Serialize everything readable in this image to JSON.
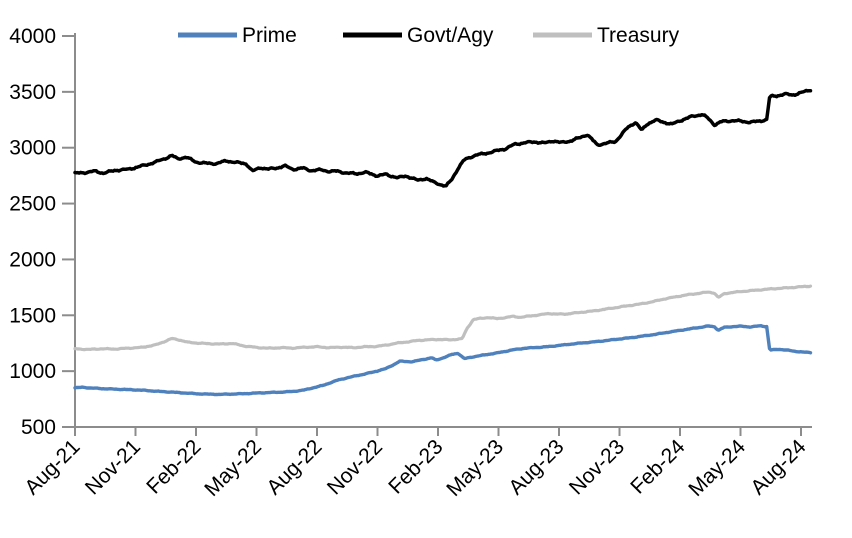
{
  "chart_data": {
    "type": "line",
    "title": "",
    "x_unit": "months since Aug-2021",
    "x_axis": {
      "tick_labels": [
        "Aug-21",
        "Nov-21",
        "Feb-22",
        "May-22",
        "Aug-22",
        "Nov-22",
        "Feb-23",
        "May-23",
        "Aug-23",
        "Nov-23",
        "Feb-24",
        "May-24",
        "Aug-24"
      ],
      "tick_positions_months": [
        0,
        3,
        6,
        9,
        12,
        15,
        18,
        21,
        24,
        27,
        30,
        33,
        36
      ],
      "range_months": [
        0,
        36.5
      ]
    },
    "y_axis": {
      "ticks": [
        500,
        1000,
        1500,
        2000,
        2500,
        3000,
        3500,
        4000
      ],
      "range": [
        500,
        4000
      ]
    },
    "grid": false,
    "legend": {
      "position": "top",
      "entries": [
        "Prime",
        "Govt/Agy",
        "Treasury"
      ]
    },
    "colors": {
      "axis": "#8c8c8c",
      "text": "#000000",
      "background": "#ffffff"
    },
    "series": [
      {
        "name": "Prime",
        "color": "#4f81bd",
        "line_width": 3.4,
        "wiggle": 3.5,
        "points": [
          [
            0,
            850
          ],
          [
            0.4,
            856
          ],
          [
            0.8,
            848
          ],
          [
            1.2,
            845
          ],
          [
            1.8,
            840
          ],
          [
            2.4,
            836
          ],
          [
            3,
            832
          ],
          [
            3.6,
            826
          ],
          [
            4.2,
            818
          ],
          [
            4.8,
            812
          ],
          [
            5.4,
            805
          ],
          [
            6,
            798
          ],
          [
            6.6,
            794
          ],
          [
            7.2,
            792
          ],
          [
            7.8,
            795
          ],
          [
            8.4,
            798
          ],
          [
            9,
            804
          ],
          [
            9.6,
            808
          ],
          [
            10.2,
            812
          ],
          [
            10.8,
            818
          ],
          [
            11.4,
            832
          ],
          [
            11.9,
            855
          ],
          [
            12.3,
            872
          ],
          [
            13,
            918
          ],
          [
            13.6,
            945
          ],
          [
            14.2,
            968
          ],
          [
            14.8,
            992
          ],
          [
            15.4,
            1022
          ],
          [
            15.8,
            1058
          ],
          [
            16.1,
            1088
          ],
          [
            16.7,
            1084
          ],
          [
            17.2,
            1102
          ],
          [
            17.7,
            1120
          ],
          [
            17.9,
            1098
          ],
          [
            18.3,
            1122
          ],
          [
            18.7,
            1150
          ],
          [
            19,
            1160
          ],
          [
            19.3,
            1112
          ],
          [
            19.8,
            1130
          ],
          [
            20.3,
            1145
          ],
          [
            21,
            1165
          ],
          [
            21.7,
            1190
          ],
          [
            22.3,
            1205
          ],
          [
            22.9,
            1212
          ],
          [
            23.4,
            1218
          ],
          [
            24,
            1230
          ],
          [
            24.6,
            1242
          ],
          [
            25.2,
            1253
          ],
          [
            25.8,
            1263
          ],
          [
            26.4,
            1275
          ],
          [
            27,
            1288
          ],
          [
            27.6,
            1300
          ],
          [
            28.2,
            1315
          ],
          [
            28.8,
            1330
          ],
          [
            29.4,
            1348
          ],
          [
            29.9,
            1362
          ],
          [
            30.4,
            1376
          ],
          [
            31,
            1392
          ],
          [
            31.4,
            1404
          ],
          [
            31.7,
            1398
          ],
          [
            31.9,
            1366
          ],
          [
            32.2,
            1392
          ],
          [
            32.6,
            1398
          ],
          [
            33,
            1402
          ],
          [
            33.5,
            1396
          ],
          [
            34,
            1406
          ],
          [
            34.3,
            1398
          ],
          [
            34.45,
            1188
          ],
          [
            34.9,
            1196
          ],
          [
            35.3,
            1188
          ],
          [
            35.7,
            1178
          ],
          [
            36.1,
            1170
          ],
          [
            36.5,
            1166
          ]
        ]
      },
      {
        "name": "Govt/Agy",
        "color": "#000000",
        "line_width": 3.5,
        "wiggle": 10,
        "points": [
          [
            0,
            2770
          ],
          [
            0.6,
            2780
          ],
          [
            1,
            2790
          ],
          [
            1.4,
            2772
          ],
          [
            2,
            2798
          ],
          [
            2.6,
            2806
          ],
          [
            3,
            2822
          ],
          [
            3.6,
            2850
          ],
          [
            4,
            2872
          ],
          [
            4.5,
            2906
          ],
          [
            4.8,
            2930
          ],
          [
            5.1,
            2900
          ],
          [
            5.5,
            2916
          ],
          [
            6,
            2872
          ],
          [
            6.5,
            2860
          ],
          [
            7,
            2858
          ],
          [
            7.5,
            2882
          ],
          [
            8,
            2868
          ],
          [
            8.5,
            2856
          ],
          [
            8.8,
            2790
          ],
          [
            9.2,
            2822
          ],
          [
            9.6,
            2808
          ],
          [
            10,
            2818
          ],
          [
            10.4,
            2838
          ],
          [
            10.8,
            2806
          ],
          [
            11.3,
            2818
          ],
          [
            11.7,
            2795
          ],
          [
            12.2,
            2802
          ],
          [
            12.6,
            2788
          ],
          [
            13,
            2790
          ],
          [
            13.5,
            2772
          ],
          [
            14,
            2768
          ],
          [
            14.4,
            2780
          ],
          [
            15,
            2748
          ],
          [
            15.4,
            2762
          ],
          [
            16,
            2730
          ],
          [
            16.4,
            2748
          ],
          [
            17,
            2708
          ],
          [
            17.4,
            2726
          ],
          [
            17.8,
            2690
          ],
          [
            18.1,
            2672
          ],
          [
            18.4,
            2655
          ],
          [
            18.7,
            2720
          ],
          [
            19,
            2818
          ],
          [
            19.3,
            2890
          ],
          [
            19.6,
            2915
          ],
          [
            19.9,
            2935
          ],
          [
            20.4,
            2950
          ],
          [
            20.8,
            2968
          ],
          [
            21.3,
            2988
          ],
          [
            21.8,
            3030
          ],
          [
            22.3,
            3045
          ],
          [
            22.8,
            3052
          ],
          [
            23.3,
            3042
          ],
          [
            23.7,
            3062
          ],
          [
            24.1,
            3045
          ],
          [
            24.6,
            3062
          ],
          [
            25,
            3088
          ],
          [
            25.4,
            3118
          ],
          [
            25.9,
            3025
          ],
          [
            26.4,
            3042
          ],
          [
            26.8,
            3055
          ],
          [
            27.4,
            3180
          ],
          [
            27.8,
            3228
          ],
          [
            28.1,
            3155
          ],
          [
            28.4,
            3215
          ],
          [
            28.8,
            3248
          ],
          [
            29.2,
            3228
          ],
          [
            29.6,
            3210
          ],
          [
            30,
            3242
          ],
          [
            30.6,
            3280
          ],
          [
            31.1,
            3298
          ],
          [
            31.4,
            3262
          ],
          [
            31.7,
            3205
          ],
          [
            32.1,
            3235
          ],
          [
            32.6,
            3242
          ],
          [
            33,
            3238
          ],
          [
            33.5,
            3228
          ],
          [
            34,
            3240
          ],
          [
            34.3,
            3252
          ],
          [
            34.45,
            3458
          ],
          [
            34.8,
            3465
          ],
          [
            35.2,
            3480
          ],
          [
            35.6,
            3472
          ],
          [
            36,
            3492
          ],
          [
            36.5,
            3520
          ]
        ]
      },
      {
        "name": "Treasury",
        "color": "#bfbfbf",
        "line_width": 3.2,
        "wiggle": 4.5,
        "points": [
          [
            0,
            1200
          ],
          [
            0.7,
            1194
          ],
          [
            1.3,
            1200
          ],
          [
            2,
            1198
          ],
          [
            2.7,
            1206
          ],
          [
            3.3,
            1212
          ],
          [
            4,
            1235
          ],
          [
            4.4,
            1262
          ],
          [
            4.8,
            1292
          ],
          [
            5.2,
            1278
          ],
          [
            5.6,
            1258
          ],
          [
            6,
            1252
          ],
          [
            6.6,
            1246
          ],
          [
            7.2,
            1242
          ],
          [
            7.8,
            1248
          ],
          [
            8.4,
            1225
          ],
          [
            9,
            1212
          ],
          [
            9.6,
            1205
          ],
          [
            10.2,
            1210
          ],
          [
            10.8,
            1206
          ],
          [
            11.4,
            1214
          ],
          [
            12,
            1218
          ],
          [
            12.6,
            1210
          ],
          [
            13.2,
            1215
          ],
          [
            13.8,
            1210
          ],
          [
            14.4,
            1218
          ],
          [
            15,
            1222
          ],
          [
            15.5,
            1235
          ],
          [
            16,
            1252
          ],
          [
            16.5,
            1262
          ],
          [
            17,
            1275
          ],
          [
            17.5,
            1280
          ],
          [
            18,
            1284
          ],
          [
            18.6,
            1280
          ],
          [
            19.2,
            1290
          ],
          [
            19.45,
            1385
          ],
          [
            19.75,
            1462
          ],
          [
            20.1,
            1472
          ],
          [
            20.5,
            1480
          ],
          [
            20.9,
            1470
          ],
          [
            21.3,
            1478
          ],
          [
            21.7,
            1490
          ],
          [
            22.1,
            1482
          ],
          [
            22.6,
            1495
          ],
          [
            23.1,
            1505
          ],
          [
            23.5,
            1516
          ],
          [
            23.9,
            1510
          ],
          [
            24.4,
            1512
          ],
          [
            25,
            1525
          ],
          [
            25.6,
            1536
          ],
          [
            26.2,
            1552
          ],
          [
            26.8,
            1568
          ],
          [
            27.4,
            1585
          ],
          [
            28,
            1600
          ],
          [
            28.6,
            1620
          ],
          [
            29.2,
            1645
          ],
          [
            29.8,
            1666
          ],
          [
            30.4,
            1684
          ],
          [
            31,
            1698
          ],
          [
            31.4,
            1708
          ],
          [
            31.7,
            1700
          ],
          [
            31.9,
            1658
          ],
          [
            32.2,
            1694
          ],
          [
            32.6,
            1704
          ],
          [
            33,
            1712
          ],
          [
            33.5,
            1720
          ],
          [
            34,
            1728
          ],
          [
            34.5,
            1736
          ],
          [
            35,
            1742
          ],
          [
            35.5,
            1748
          ],
          [
            36,
            1755
          ],
          [
            36.5,
            1762
          ]
        ]
      }
    ]
  }
}
